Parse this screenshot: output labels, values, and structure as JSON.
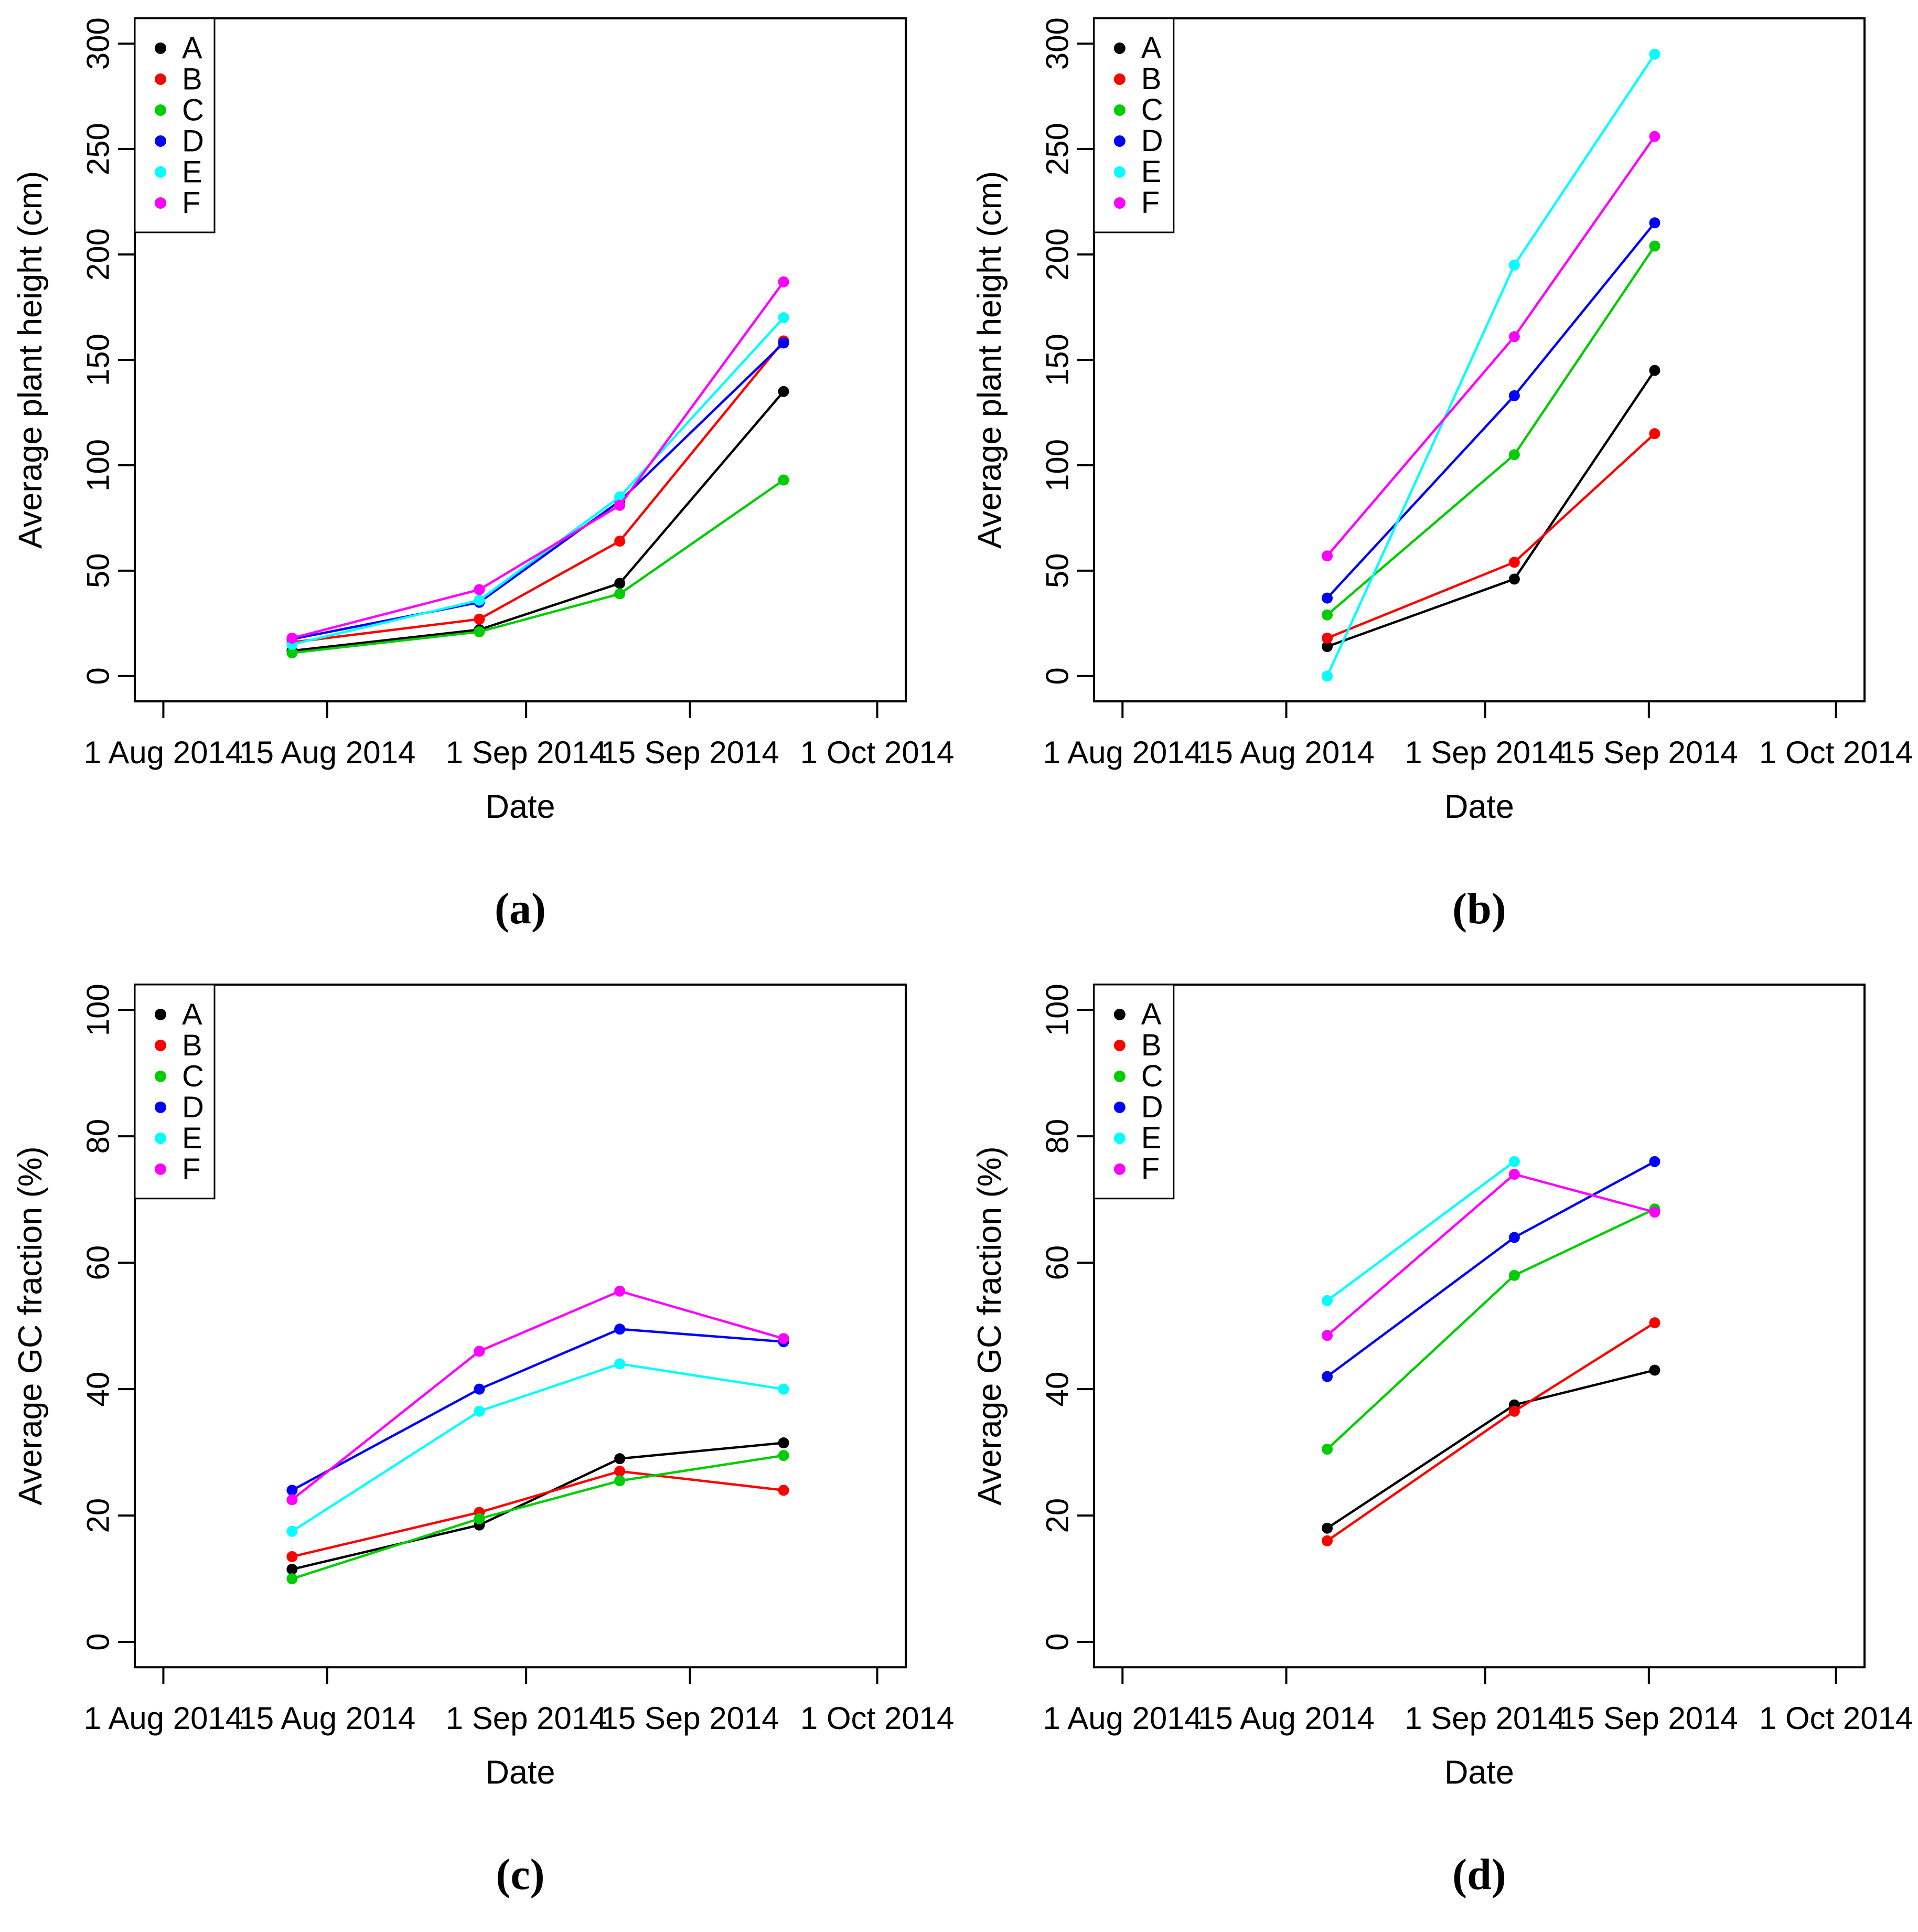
{
  "page": {
    "background": "#FFFFFF"
  },
  "axis": {
    "xlabel": "Date",
    "x_tick_days": [
      0,
      14,
      31,
      45,
      61
    ],
    "x_tick_labels": [
      "1 Aug 2014",
      "15 Aug 2014",
      "1 Sep 2014",
      "15 Sep 2014",
      "1 Oct 2014"
    ],
    "x_range_days": [
      0,
      61
    ]
  },
  "legend": {
    "position": "topleft",
    "items": [
      {
        "label": "A",
        "color": "#000000"
      },
      {
        "label": "B",
        "color": "#FF0000"
      },
      {
        "label": "C",
        "color": "#00CD00"
      },
      {
        "label": "D",
        "color": "#0000FF"
      },
      {
        "label": "E",
        "color": "#00FFFF"
      },
      {
        "label": "F",
        "color": "#FF00FF"
      }
    ]
  },
  "chart_data": [
    {
      "id": "a",
      "type": "line",
      "caption": "(a)",
      "xlabel": "Date",
      "ylabel": "Average plant height (cm)",
      "ylim": [
        0,
        300
      ],
      "yticks": [
        0,
        50,
        100,
        150,
        200,
        250,
        300
      ],
      "x_days": [
        11,
        27,
        39,
        53
      ],
      "x_dates": [
        "12 Aug 2014",
        "28 Aug 2014",
        "9 Sep 2014",
        "23 Sep 2014"
      ],
      "series": [
        {
          "name": "A",
          "color": "#000000",
          "values": [
            12,
            22,
            44,
            135
          ]
        },
        {
          "name": "B",
          "color": "#FF0000",
          "values": [
            16,
            27,
            64,
            159
          ]
        },
        {
          "name": "C",
          "color": "#00CD00",
          "values": [
            11,
            21,
            39,
            93
          ]
        },
        {
          "name": "D",
          "color": "#0000FF",
          "values": [
            17.5,
            35,
            83,
            158
          ]
        },
        {
          "name": "E",
          "color": "#00FFFF",
          "values": [
            15,
            36,
            85,
            170
          ]
        },
        {
          "name": "F",
          "color": "#FF00FF",
          "values": [
            18,
            41,
            81,
            187
          ]
        }
      ]
    },
    {
      "id": "b",
      "type": "line",
      "caption": "(b)",
      "xlabel": "Date",
      "ylabel": "Average plant height (cm)",
      "ylim": [
        0,
        300
      ],
      "yticks": [
        0,
        50,
        100,
        150,
        200,
        250,
        300
      ],
      "x_days": [
        17.5,
        33.5,
        45.5
      ],
      "x_dates": [
        "18 Aug 2014",
        "3 Sep 2014",
        "15 Sep 2014"
      ],
      "series": [
        {
          "name": "A",
          "color": "#000000",
          "values": [
            14,
            46,
            145
          ]
        },
        {
          "name": "B",
          "color": "#FF0000",
          "values": [
            18,
            54,
            115
          ]
        },
        {
          "name": "C",
          "color": "#00CD00",
          "values": [
            29,
            105,
            204
          ]
        },
        {
          "name": "D",
          "color": "#0000FF",
          "values": [
            37,
            133,
            215
          ]
        },
        {
          "name": "E",
          "color": "#00FFFF",
          "values": [
            0,
            195,
            295
          ]
        },
        {
          "name": "F",
          "color": "#FF00FF",
          "values": [
            57,
            161,
            256
          ]
        }
      ]
    },
    {
      "id": "c",
      "type": "line",
      "caption": "(c)",
      "xlabel": "Date",
      "ylabel": "Average GC fraction (%)",
      "ylim": [
        0,
        100
      ],
      "yticks": [
        0,
        20,
        40,
        60,
        80,
        100
      ],
      "x_days": [
        11,
        27,
        39,
        53
      ],
      "x_dates": [
        "12 Aug 2014",
        "28 Aug 2014",
        "9 Sep 2014",
        "23 Sep 2014"
      ],
      "series": [
        {
          "name": "A",
          "color": "#000000",
          "values": [
            11.5,
            18.5,
            29,
            31.5
          ]
        },
        {
          "name": "B",
          "color": "#FF0000",
          "values": [
            13.5,
            20.5,
            27,
            24
          ]
        },
        {
          "name": "C",
          "color": "#00CD00",
          "values": [
            10,
            19.5,
            25.5,
            29.5
          ]
        },
        {
          "name": "D",
          "color": "#0000FF",
          "values": [
            24,
            40,
            49.5,
            47.5
          ]
        },
        {
          "name": "E",
          "color": "#00FFFF",
          "values": [
            17.5,
            36.5,
            44,
            40
          ]
        },
        {
          "name": "F",
          "color": "#FF00FF",
          "values": [
            22.5,
            46,
            55.5,
            48
          ]
        }
      ]
    },
    {
      "id": "d",
      "type": "line",
      "caption": "(d)",
      "xlabel": "Date",
      "ylabel": "Average GC fraction (%)",
      "ylim": [
        0,
        100
      ],
      "yticks": [
        0,
        20,
        40,
        60,
        80,
        100
      ],
      "x_days": [
        17.5,
        33.5,
        45.5
      ],
      "x_dates": [
        "18 Aug 2014",
        "3 Sep 2014",
        "15 Sep 2014"
      ],
      "series": [
        {
          "name": "A",
          "color": "#000000",
          "values": [
            18,
            37.5,
            43
          ]
        },
        {
          "name": "B",
          "color": "#FF0000",
          "values": [
            16,
            36.5,
            50.5
          ]
        },
        {
          "name": "C",
          "color": "#00CD00",
          "values": [
            30.5,
            58,
            68.5
          ]
        },
        {
          "name": "D",
          "color": "#0000FF",
          "values": [
            42,
            64,
            76
          ]
        },
        {
          "name": "E",
          "color": "#00FFFF",
          "values": [
            54,
            76,
            null
          ]
        },
        {
          "name": "F",
          "color": "#FF00FF",
          "values": [
            48.5,
            74,
            68
          ]
        }
      ]
    }
  ]
}
